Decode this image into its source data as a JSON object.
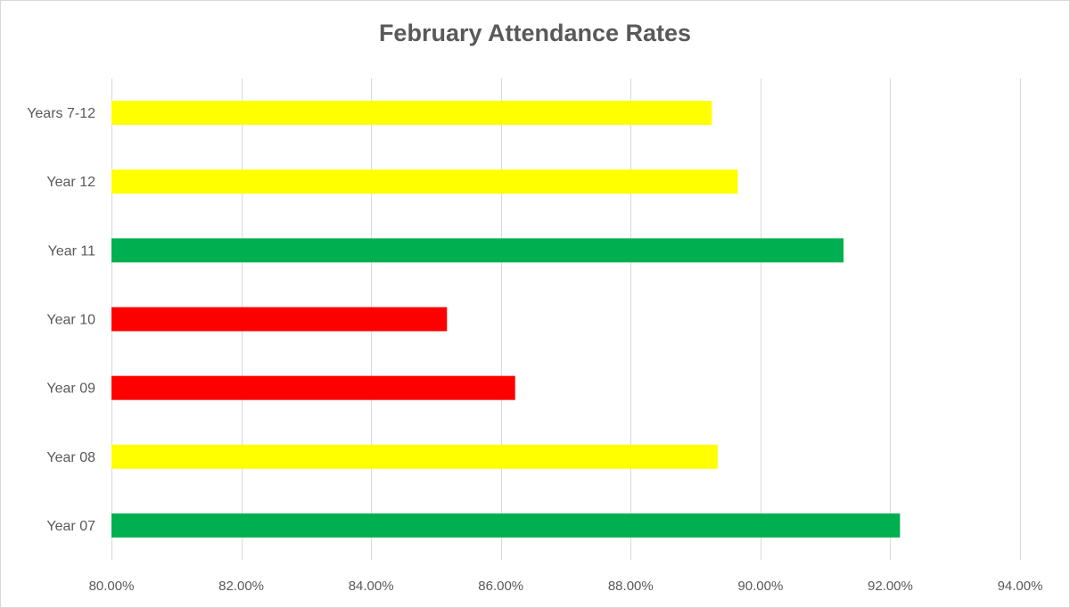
{
  "chart_data": {
    "type": "bar",
    "orientation": "horizontal",
    "title": "February Attendance Rates",
    "xlabel": "",
    "ylabel": "",
    "categories": [
      "Years 7-12",
      "Year 12",
      "Year 11",
      "Year 10",
      "Year 09",
      "Year 08",
      "Year 07"
    ],
    "values": [
      89.25,
      89.65,
      91.28,
      85.17,
      86.22,
      89.34,
      92.15
    ],
    "bar_colors": [
      "#ffff00",
      "#ffff00",
      "#00b050",
      "#ff0000",
      "#ff0000",
      "#ffff00",
      "#00b050"
    ],
    "xlim": [
      80,
      94
    ],
    "xticks": [
      80,
      82,
      84,
      86,
      88,
      90,
      92,
      94
    ],
    "xtick_labels": [
      "80.00%",
      "82.00%",
      "84.00%",
      "86.00%",
      "88.00%",
      "90.00%",
      "92.00%",
      "94.00%"
    ],
    "grid": true,
    "legend": "none",
    "gridline_color": "#d9d9d9"
  }
}
